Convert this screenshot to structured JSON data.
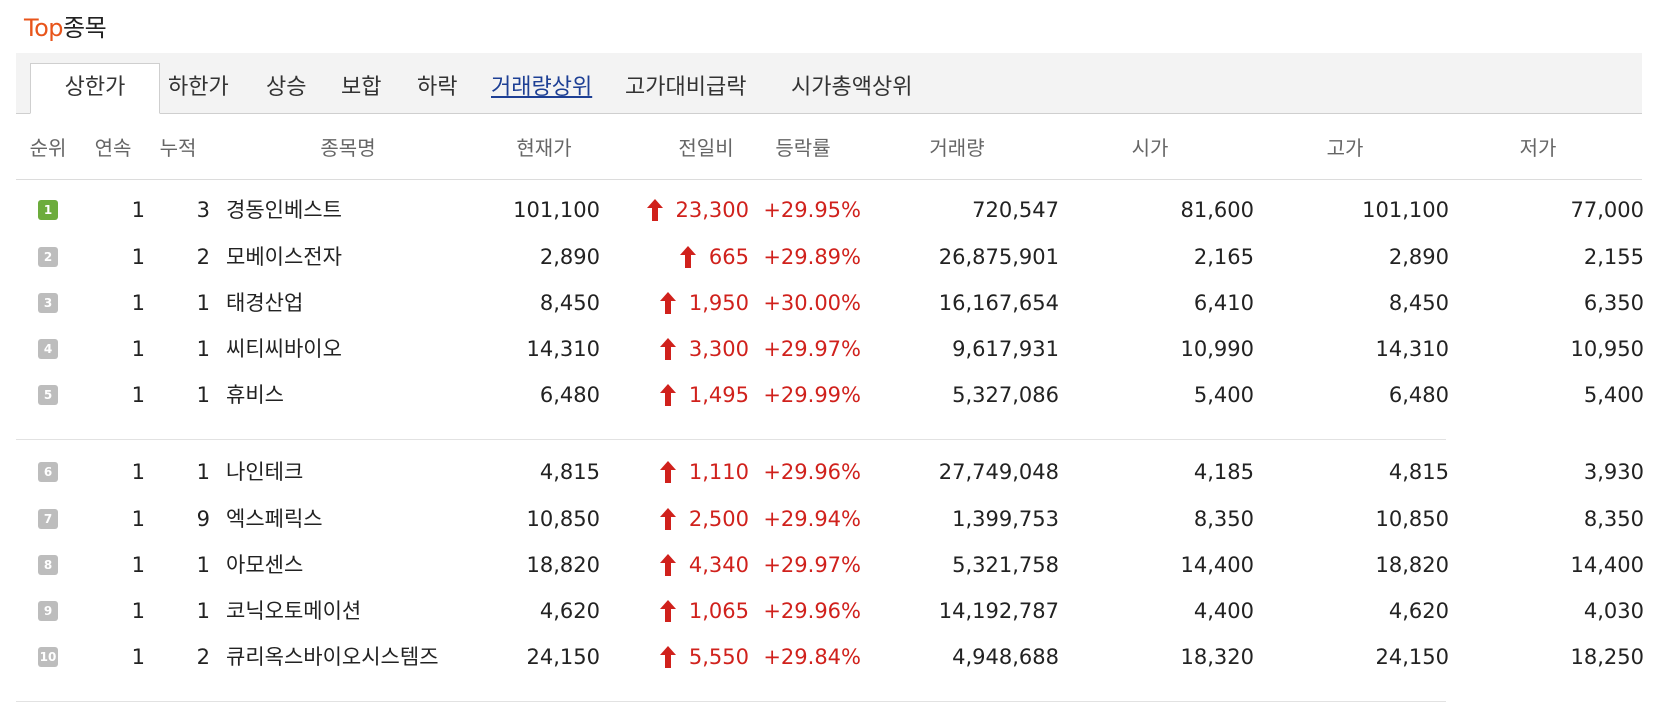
{
  "title": {
    "accent": "Top",
    "rest": "종목"
  },
  "tabs": [
    {
      "label": "상한가",
      "state": "active"
    },
    {
      "label": "하한가",
      "state": "normal"
    },
    {
      "label": "상승",
      "state": "normal"
    },
    {
      "label": "보합",
      "state": "normal"
    },
    {
      "label": "하락",
      "state": "normal"
    },
    {
      "label": "거래량상위",
      "state": "link"
    },
    {
      "label": "고가대비급락",
      "state": "normal"
    },
    {
      "label": "시가총액상위",
      "state": "normal"
    }
  ],
  "table": {
    "headers": {
      "rank": "순위",
      "streak": "연속",
      "cumulative": "누적",
      "name": "종목명",
      "price": "현재가",
      "change": "전일비",
      "rate": "등락률",
      "volume": "거래량",
      "open": "시가",
      "high": "고가",
      "low": "저가"
    },
    "rows": [
      {
        "rank": "1",
        "streak": "1",
        "cumulative": "3",
        "name": "경동인베스트",
        "price": "101,100",
        "change": "23,300",
        "rate": "+29.95%",
        "volume": "720,547",
        "open": "81,600",
        "high": "101,100",
        "low": "77,000"
      },
      {
        "rank": "2",
        "streak": "1",
        "cumulative": "2",
        "name": "모베이스전자",
        "price": "2,890",
        "change": "665",
        "rate": "+29.89%",
        "volume": "26,875,901",
        "open": "2,165",
        "high": "2,890",
        "low": "2,155"
      },
      {
        "rank": "3",
        "streak": "1",
        "cumulative": "1",
        "name": "태경산업",
        "price": "8,450",
        "change": "1,950",
        "rate": "+30.00%",
        "volume": "16,167,654",
        "open": "6,410",
        "high": "8,450",
        "low": "6,350"
      },
      {
        "rank": "4",
        "streak": "1",
        "cumulative": "1",
        "name": "씨티씨바이오",
        "price": "14,310",
        "change": "3,300",
        "rate": "+29.97%",
        "volume": "9,617,931",
        "open": "10,990",
        "high": "14,310",
        "low": "10,950"
      },
      {
        "rank": "5",
        "streak": "1",
        "cumulative": "1",
        "name": "휴비스",
        "price": "6,480",
        "change": "1,495",
        "rate": "+29.99%",
        "volume": "5,327,086",
        "open": "5,400",
        "high": "6,480",
        "low": "5,400"
      },
      {
        "rank": "6",
        "streak": "1",
        "cumulative": "1",
        "name": "나인테크",
        "price": "4,815",
        "change": "1,110",
        "rate": "+29.96%",
        "volume": "27,749,048",
        "open": "4,185",
        "high": "4,815",
        "low": "3,930"
      },
      {
        "rank": "7",
        "streak": "1",
        "cumulative": "9",
        "name": "엑스페릭스",
        "price": "10,850",
        "change": "2,500",
        "rate": "+29.94%",
        "volume": "1,399,753",
        "open": "8,350",
        "high": "10,850",
        "low": "8,350"
      },
      {
        "rank": "8",
        "streak": "1",
        "cumulative": "1",
        "name": "아모센스",
        "price": "18,820",
        "change": "4,340",
        "rate": "+29.97%",
        "volume": "5,321,758",
        "open": "14,400",
        "high": "18,820",
        "low": "14,400"
      },
      {
        "rank": "9",
        "streak": "1",
        "cumulative": "1",
        "name": "코닉오토메이션",
        "price": "4,620",
        "change": "1,065",
        "rate": "+29.96%",
        "volume": "14,192,787",
        "open": "4,400",
        "high": "4,620",
        "low": "4,030"
      },
      {
        "rank": "10",
        "streak": "1",
        "cumulative": "2",
        "name": "큐리옥스바이오시스템즈",
        "price": "24,150",
        "change": "5,550",
        "rate": "+29.84%",
        "volume": "4,948,688",
        "open": "18,320",
        "high": "24,150",
        "low": "18,250"
      }
    ]
  },
  "colors": {
    "accent": "#e8551b",
    "up": "#d0211c",
    "rank_top": "#6cac3c",
    "rank_other": "#bdbdbd",
    "link": "#1d3f94"
  },
  "icons": {
    "change": "up-arrow-icon",
    "rank": "rank-badge-icon"
  }
}
